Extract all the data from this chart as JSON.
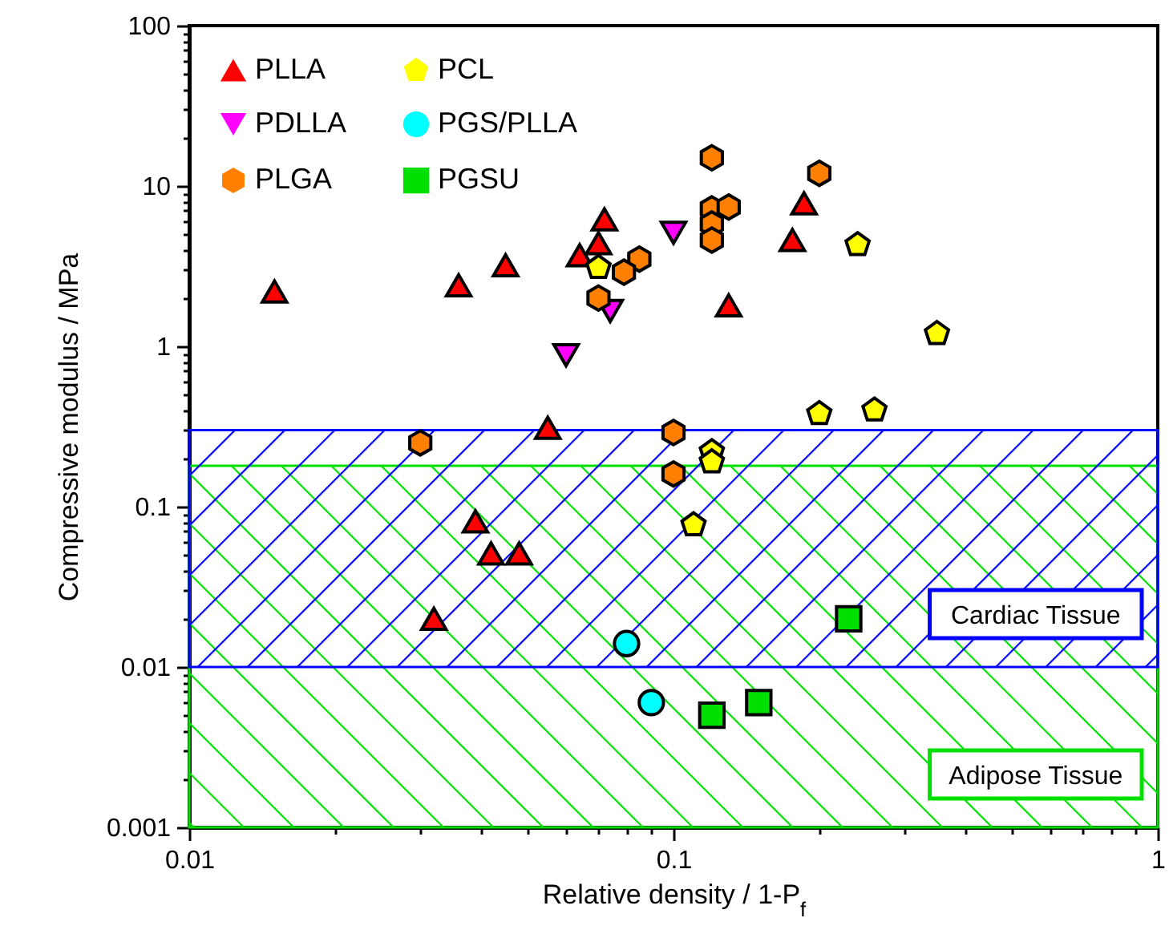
{
  "chart_data": {
    "type": "scatter",
    "xlabel": "Relative density / 1-P$_{f}$",
    "ylabel": "Compressive modulus / MPa",
    "log": "xy",
    "xlim": [
      0.01,
      1
    ],
    "ylim": [
      0.001,
      100
    ],
    "xticks": [
      0.01,
      {
        "value": 0.02,
        "label": null
      },
      {
        "value": 0.03,
        "label": null
      },
      {
        "value": 0.04,
        "label": null
      },
      {
        "value": 0.05,
        "label": null
      },
      {
        "value": 0.06,
        "label": null
      },
      {
        "value": 0.07,
        "label": null
      },
      {
        "value": 0.08,
        "label": null
      },
      {
        "value": 0.09,
        "label": null
      },
      0.1,
      {
        "value": 0.2,
        "label": null
      },
      {
        "value": 0.3,
        "label": null
      },
      {
        "value": 0.4,
        "label": null
      },
      {
        "value": 0.5,
        "label": null
      },
      {
        "value": 0.6,
        "label": null
      },
      {
        "value": 0.7,
        "label": null
      },
      {
        "value": 0.8,
        "label": null
      },
      {
        "value": 0.9,
        "label": null
      },
      1
    ],
    "yticks": [
      0.001,
      {
        "value": 0.002,
        "label": null
      },
      {
        "value": 0.003,
        "label": null
      },
      {
        "value": 0.004,
        "label": null
      },
      {
        "value": 0.005,
        "label": null
      },
      {
        "value": 0.006,
        "label": null
      },
      {
        "value": 0.007,
        "label": null
      },
      {
        "value": 0.008,
        "label": null
      },
      {
        "value": 0.009,
        "label": null
      },
      0.01,
      {
        "value": 0.02,
        "label": null
      },
      {
        "value": 0.03,
        "label": null
      },
      {
        "value": 0.04,
        "label": null
      },
      {
        "value": 0.05,
        "label": null
      },
      {
        "value": 0.06,
        "label": null
      },
      {
        "value": 0.07,
        "label": null
      },
      {
        "value": 0.08,
        "label": null
      },
      {
        "value": 0.09,
        "label": null
      },
      0.1,
      {
        "value": 0.2,
        "label": null
      },
      {
        "value": 0.3,
        "label": null
      },
      {
        "value": 0.4,
        "label": null
      },
      {
        "value": 0.5,
        "label": null
      },
      {
        "value": 0.6,
        "label": null
      },
      {
        "value": 0.7,
        "label": null
      },
      {
        "value": 0.8,
        "label": null
      },
      {
        "value": 0.9,
        "label": null
      },
      1,
      {
        "value": 2,
        "label": null
      },
      {
        "value": 3,
        "label": null
      },
      {
        "value": 4,
        "label": null
      },
      {
        "value": 5,
        "label": null
      },
      {
        "value": 6,
        "label": null
      },
      {
        "value": 7,
        "label": null
      },
      {
        "value": 8,
        "label": null
      },
      {
        "value": 9,
        "label": null
      },
      10,
      {
        "value": 20,
        "label": null
      },
      {
        "value": 30,
        "label": null
      },
      {
        "value": 40,
        "label": null
      },
      {
        "value": 50,
        "label": null
      },
      {
        "value": 60,
        "label": null
      },
      {
        "value": 70,
        "label": null
      },
      {
        "value": 80,
        "label": null
      },
      {
        "value": 90,
        "label": null
      },
      100
    ],
    "legend": "top left",
    "grid": false,
    "bands": [
      {
        "axis": "y",
        "from": 0.001,
        "to": 0.18,
        "label": "Adipose Tissue",
        "color": "#00e000"
      },
      {
        "axis": "y",
        "from": 0.01,
        "to": 0.3,
        "label": "Cardiac Tissue",
        "color": "#0000ff"
      }
    ],
    "series": [
      {
        "name": "PLLA",
        "color": "#ff0000",
        "marker": "triangle",
        "x": [
          0.015,
          0.036,
          0.045,
          0.072,
          0.07,
          0.064,
          0.186,
          0.176,
          0.13,
          0.055,
          0.039,
          0.042,
          0.048,
          0.032
        ],
        "values": [
          2.2,
          2.4,
          3.2,
          6.2,
          4.4,
          3.7,
          7.8,
          4.6,
          1.8,
          0.31,
          0.081,
          0.051,
          0.051,
          0.02
        ]
      },
      {
        "name": "PDLLA",
        "color": "#ff00ff",
        "marker": "triangle-down",
        "x": [
          0.1,
          0.06,
          0.074
        ],
        "values": [
          5.1,
          0.88,
          1.66
        ]
      },
      {
        "name": "PLGA",
        "color": "#ff8000",
        "x": [
          0.12,
          0.2,
          0.12,
          0.13,
          0.12,
          0.12,
          0.085,
          0.079,
          0.07,
          0.03,
          0.1,
          0.1
        ],
        "values": [
          15,
          12,
          7.2,
          7.4,
          5.8,
          4.6,
          3.5,
          2.9,
          2.0,
          0.25,
          0.29,
          0.16
        ]
      },
      {
        "name": "PCL",
        "color": "#ffff00",
        "x": [
          0.07,
          0.24,
          0.35,
          0.2,
          0.26,
          0.12,
          0.12,
          0.11
        ],
        "values": [
          3.1,
          4.3,
          1.2,
          0.38,
          0.4,
          0.22,
          0.19,
          0.077
        ]
      },
      {
        "name": "PGS/PLLA",
        "color": "#00ffff",
        "marker": "circle",
        "x": [
          0.08,
          0.09
        ],
        "values": [
          0.014,
          0.006
        ]
      },
      {
        "name": "PGSU",
        "color": "#00e000",
        "marker": "square",
        "x": [
          0.23,
          0.12,
          0.15
        ],
        "values": [
          0.02,
          0.005,
          0.006
        ]
      }
    ]
  }
}
